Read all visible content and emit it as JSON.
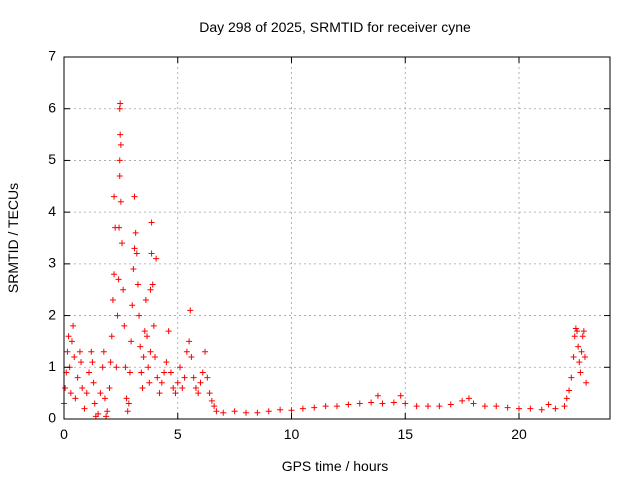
{
  "chart_data": {
    "type": "scatter",
    "title": "Day 298 of 2025, SRMTID for receiver cyne",
    "xlabel": "GPS time / hours",
    "ylabel": "SRMTID / TECUs",
    "xlim": [
      0,
      24
    ],
    "ylim": [
      0,
      7
    ],
    "xticks": [
      0,
      5,
      10,
      15,
      20
    ],
    "yticks": [
      0,
      1,
      2,
      3,
      4,
      5,
      6,
      7
    ],
    "grid": true,
    "marker": "+",
    "color": "#ff0000",
    "series": [
      {
        "name": "SRMTID",
        "points": [
          [
            0.0,
            0.3
          ],
          [
            0.05,
            0.6
          ],
          [
            0.1,
            0.9
          ],
          [
            0.15,
            1.3
          ],
          [
            0.2,
            1.6
          ],
          [
            0.25,
            1.0
          ],
          [
            0.3,
            0.5
          ],
          [
            0.35,
            1.5
          ],
          [
            0.4,
            1.8
          ],
          [
            0.45,
            1.2
          ],
          [
            0.5,
            0.4
          ],
          [
            0.6,
            0.8
          ],
          [
            0.7,
            1.3
          ],
          [
            0.75,
            1.1
          ],
          [
            0.8,
            0.6
          ],
          [
            0.9,
            0.2
          ],
          [
            1.0,
            0.5
          ],
          [
            1.1,
            0.9
          ],
          [
            1.2,
            1.3
          ],
          [
            1.25,
            1.1
          ],
          [
            1.3,
            0.7
          ],
          [
            1.35,
            0.3
          ],
          [
            1.4,
            0.05
          ],
          [
            1.5,
            0.1
          ],
          [
            1.6,
            0.5
          ],
          [
            1.7,
            1.0
          ],
          [
            1.75,
            1.3
          ],
          [
            1.8,
            0.4
          ],
          [
            1.85,
            0.05
          ],
          [
            1.9,
            0.15
          ],
          [
            2.0,
            0.6
          ],
          [
            2.05,
            1.1
          ],
          [
            2.1,
            1.6
          ],
          [
            2.15,
            2.3
          ],
          [
            2.2,
            2.8
          ],
          [
            2.25,
            3.7
          ],
          [
            2.2,
            4.3
          ],
          [
            2.3,
            1.0
          ],
          [
            2.35,
            2.0
          ],
          [
            2.4,
            2.7
          ],
          [
            2.42,
            3.7
          ],
          [
            2.45,
            4.7
          ],
          [
            2.45,
            5.0
          ],
          [
            2.47,
            5.5
          ],
          [
            2.45,
            6.0
          ],
          [
            2.47,
            6.1
          ],
          [
            2.5,
            5.3
          ],
          [
            2.5,
            4.2
          ],
          [
            2.55,
            3.4
          ],
          [
            2.6,
            2.5
          ],
          [
            2.65,
            1.8
          ],
          [
            2.7,
            1.0
          ],
          [
            2.75,
            0.4
          ],
          [
            2.8,
            0.15
          ],
          [
            2.85,
            0.3
          ],
          [
            2.9,
            0.9
          ],
          [
            2.95,
            1.5
          ],
          [
            3.0,
            2.2
          ],
          [
            3.05,
            2.9
          ],
          [
            3.1,
            3.3
          ],
          [
            3.1,
            4.3
          ],
          [
            3.15,
            3.6
          ],
          [
            3.2,
            3.2
          ],
          [
            3.25,
            2.6
          ],
          [
            3.3,
            2.0
          ],
          [
            3.35,
            1.4
          ],
          [
            3.4,
            0.9
          ],
          [
            3.45,
            0.6
          ],
          [
            3.5,
            1.2
          ],
          [
            3.55,
            1.7
          ],
          [
            3.6,
            2.3
          ],
          [
            3.65,
            1.6
          ],
          [
            3.7,
            1.0
          ],
          [
            3.75,
            0.7
          ],
          [
            3.8,
            1.3
          ],
          [
            3.8,
            2.5
          ],
          [
            3.85,
            3.2
          ],
          [
            3.85,
            3.8
          ],
          [
            3.9,
            2.6
          ],
          [
            3.95,
            1.8
          ],
          [
            4.0,
            1.2
          ],
          [
            4.05,
            3.1
          ],
          [
            4.1,
            0.8
          ],
          [
            4.2,
            0.5
          ],
          [
            4.3,
            0.7
          ],
          [
            4.4,
            0.9
          ],
          [
            4.5,
            1.1
          ],
          [
            4.6,
            1.7
          ],
          [
            4.7,
            0.9
          ],
          [
            4.8,
            0.6
          ],
          [
            4.9,
            0.5
          ],
          [
            5.0,
            0.7
          ],
          [
            5.1,
            1.0
          ],
          [
            5.2,
            0.6
          ],
          [
            5.3,
            0.8
          ],
          [
            5.4,
            1.3
          ],
          [
            5.5,
            1.5
          ],
          [
            5.55,
            2.1
          ],
          [
            5.6,
            1.2
          ],
          [
            5.7,
            0.8
          ],
          [
            5.8,
            0.6
          ],
          [
            5.9,
            0.5
          ],
          [
            6.0,
            0.7
          ],
          [
            6.1,
            0.9
          ],
          [
            6.2,
            1.3
          ],
          [
            6.3,
            0.8
          ],
          [
            6.4,
            0.5
          ],
          [
            6.5,
            0.35
          ],
          [
            6.6,
            0.25
          ],
          [
            6.7,
            0.15
          ],
          [
            7.0,
            0.12
          ],
          [
            7.5,
            0.15
          ],
          [
            8.0,
            0.12
          ],
          [
            8.5,
            0.12
          ],
          [
            9.0,
            0.15
          ],
          [
            9.5,
            0.18
          ],
          [
            10.0,
            0.17
          ],
          [
            10.5,
            0.2
          ],
          [
            11.0,
            0.22
          ],
          [
            11.5,
            0.25
          ],
          [
            12.0,
            0.25
          ],
          [
            12.5,
            0.28
          ],
          [
            13.0,
            0.3
          ],
          [
            13.5,
            0.32
          ],
          [
            13.8,
            0.45
          ],
          [
            14.0,
            0.3
          ],
          [
            14.5,
            0.32
          ],
          [
            14.8,
            0.45
          ],
          [
            15.0,
            0.3
          ],
          [
            15.5,
            0.25
          ],
          [
            16.0,
            0.25
          ],
          [
            16.5,
            0.25
          ],
          [
            17.0,
            0.28
          ],
          [
            17.5,
            0.35
          ],
          [
            17.8,
            0.4
          ],
          [
            18.0,
            0.3
          ],
          [
            18.5,
            0.25
          ],
          [
            19.0,
            0.25
          ],
          [
            19.5,
            0.22
          ],
          [
            20.0,
            0.2
          ],
          [
            20.5,
            0.2
          ],
          [
            21.0,
            0.18
          ],
          [
            21.3,
            0.28
          ],
          [
            21.6,
            0.2
          ],
          [
            22.0,
            0.25
          ],
          [
            22.1,
            0.4
          ],
          [
            22.2,
            0.55
          ],
          [
            22.3,
            0.8
          ],
          [
            22.4,
            1.2
          ],
          [
            22.45,
            1.6
          ],
          [
            22.5,
            1.75
          ],
          [
            22.55,
            1.7
          ],
          [
            22.6,
            1.4
          ],
          [
            22.65,
            1.1
          ],
          [
            22.7,
            0.9
          ],
          [
            22.75,
            1.3
          ],
          [
            22.8,
            1.6
          ],
          [
            22.85,
            1.7
          ],
          [
            22.9,
            1.2
          ],
          [
            22.95,
            0.7
          ]
        ]
      }
    ]
  }
}
